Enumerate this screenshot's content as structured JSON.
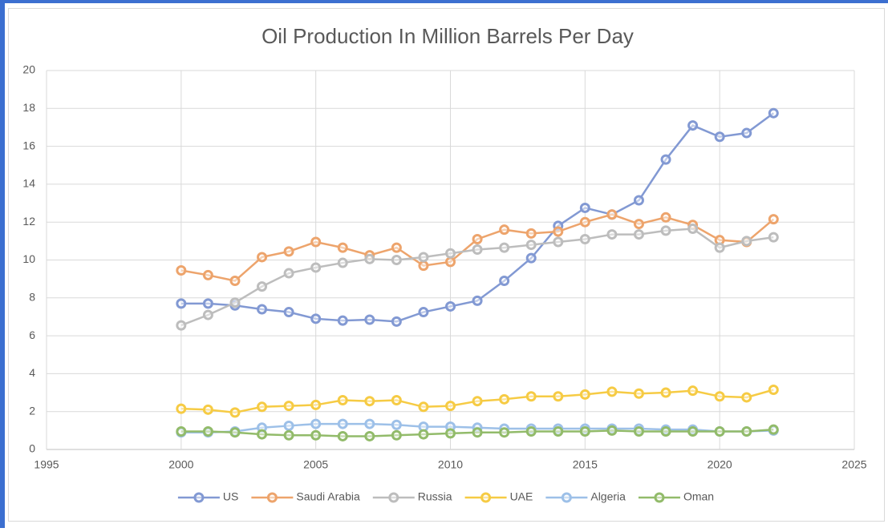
{
  "chart_data": {
    "type": "line",
    "title": "Oil Production In Million Barrels Per Day",
    "x": [
      2000,
      2001,
      2002,
      2003,
      2004,
      2005,
      2006,
      2007,
      2008,
      2009,
      2010,
      2011,
      2012,
      2013,
      2014,
      2015,
      2016,
      2017,
      2018,
      2019,
      2020,
      2021,
      2022
    ],
    "xlim": [
      1995,
      2025
    ],
    "xticks": [
      1995,
      2000,
      2005,
      2010,
      2015,
      2020,
      2025
    ],
    "ylim": [
      0,
      20
    ],
    "yticks": [
      0,
      2,
      4,
      6,
      8,
      10,
      12,
      14,
      16,
      18,
      20
    ],
    "grid": true,
    "legend": "bottom",
    "series": [
      {
        "name": "US",
        "color": "#8299d3",
        "values": [
          7.7,
          7.7,
          7.6,
          7.4,
          7.25,
          6.9,
          6.8,
          6.85,
          6.75,
          7.25,
          7.55,
          7.85,
          8.9,
          10.1,
          11.8,
          12.75,
          12.4,
          13.15,
          15.3,
          17.1,
          16.5,
          16.7,
          17.75
        ]
      },
      {
        "name": "Saudi Arabia",
        "color": "#eda46c",
        "values": [
          9.45,
          9.2,
          8.9,
          10.15,
          10.45,
          10.95,
          10.65,
          10.25,
          10.65,
          9.7,
          9.9,
          11.1,
          11.6,
          11.4,
          11.5,
          12.0,
          12.4,
          11.9,
          12.25,
          11.85,
          11.05,
          10.95,
          12.15
        ]
      },
      {
        "name": "Russia",
        "color": "#bdbdbd",
        "values": [
          6.55,
          7.1,
          7.75,
          8.6,
          9.3,
          9.6,
          9.85,
          10.05,
          10.0,
          10.15,
          10.35,
          10.55,
          10.65,
          10.8,
          10.95,
          11.1,
          11.35,
          11.35,
          11.55,
          11.65,
          10.65,
          11.0,
          11.2
        ]
      },
      {
        "name": "UAE",
        "color": "#f6cb44",
        "values": [
          2.15,
          2.1,
          1.95,
          2.25,
          2.3,
          2.35,
          2.6,
          2.55,
          2.6,
          2.25,
          2.3,
          2.55,
          2.65,
          2.8,
          2.8,
          2.9,
          3.05,
          2.95,
          3.0,
          3.1,
          2.8,
          2.75,
          3.15
        ]
      },
      {
        "name": "Algeria",
        "color": "#9dc0e8",
        "values": [
          0.9,
          0.9,
          0.95,
          1.15,
          1.25,
          1.35,
          1.35,
          1.35,
          1.3,
          1.2,
          1.2,
          1.15,
          1.1,
          1.1,
          1.1,
          1.1,
          1.1,
          1.1,
          1.05,
          1.05,
          0.95,
          0.95,
          1.0
        ]
      },
      {
        "name": "Oman",
        "color": "#92bb6a",
        "values": [
          0.95,
          0.95,
          0.9,
          0.8,
          0.75,
          0.75,
          0.7,
          0.7,
          0.75,
          0.8,
          0.85,
          0.9,
          0.9,
          0.95,
          0.95,
          0.95,
          1.0,
          0.95,
          0.95,
          0.95,
          0.95,
          0.95,
          1.05
        ]
      }
    ]
  }
}
